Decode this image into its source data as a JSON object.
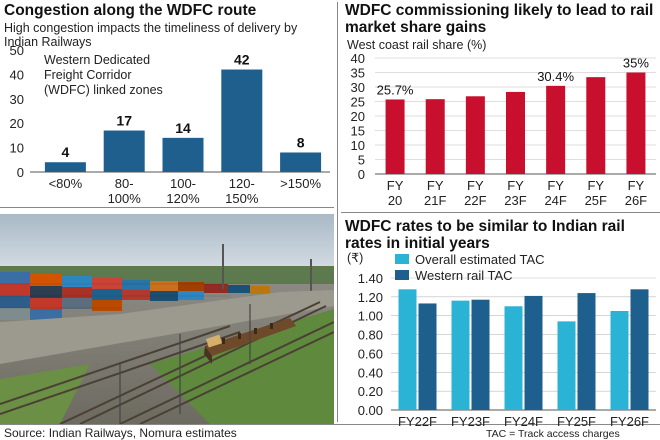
{
  "panels": {
    "congestion": {
      "title": "Congestion along the WDFC route",
      "subtitle": "High congestion impacts the timeliness of delivery by Indian Railways"
    },
    "share": {
      "title": "WDFC commissioning likely to lead to rail market share gains"
    },
    "rates": {
      "title": "WDFC rates to be similar to Indian rail rates in initial years"
    }
  },
  "footer": {
    "source": "Source: Indian Railways, Nomura estimates",
    "note": "TAC = Track access charges"
  },
  "photo": {
    "description": "Container depot with stacked shipping containers and a freight train on railway tracks"
  },
  "colors": {
    "dark_blue": "#1e5f8e",
    "red": "#c8102e",
    "light_blue": "#2bb3d6",
    "grid": "#bdbdbd"
  },
  "chart_data": [
    {
      "type": "bar",
      "title": "Congestion along the WDFC route",
      "annotation": "Western Dedicated Freight Corridor (WDFC) linked zones",
      "categories": [
        "<80%",
        "80-100%",
        "100-120%",
        "120-150%",
        ">150%"
      ],
      "category_lines": [
        [
          "<80%"
        ],
        [
          "80-",
          "100%"
        ],
        [
          "100-",
          "120%"
        ],
        [
          "120-",
          "150%"
        ],
        [
          ">150%"
        ]
      ],
      "values": [
        4,
        17,
        14,
        42,
        8
      ],
      "ylim": [
        0,
        50
      ],
      "yticks": [
        0,
        10,
        20,
        30,
        40,
        50
      ],
      "grid": false,
      "color": "#1e5f8e"
    },
    {
      "type": "bar",
      "title": "WDFC commissioning likely to lead to rail market share gains",
      "ylabel": "West coast rail share (%)",
      "categories": [
        "FY20",
        "FY21F",
        "FY22F",
        "FY23F",
        "FY24F",
        "FY25F",
        "FY26F"
      ],
      "category_lines": [
        [
          "FY",
          "20"
        ],
        [
          "FY",
          "21F"
        ],
        [
          "FY",
          "22F"
        ],
        [
          "FY",
          "23F"
        ],
        [
          "FY",
          "24F"
        ],
        [
          "FY",
          "25F"
        ],
        [
          "FY",
          "26F"
        ]
      ],
      "values": [
        25.7,
        25.8,
        26.8,
        28.3,
        30.4,
        33.4,
        35.0
      ],
      "data_labels": [
        "25.7%",
        "",
        "",
        "",
        "30.4%",
        "",
        "35%"
      ],
      "ylim": [
        0,
        40
      ],
      "yticks": [
        0,
        5,
        10,
        15,
        20,
        25,
        30,
        35,
        40
      ],
      "grid": true,
      "color": "#c8102e"
    },
    {
      "type": "bar",
      "title": "WDFC rates to be similar to Indian rail rates in initial years",
      "ylabel": "(₹)",
      "categories": [
        "FY22F",
        "FY23F",
        "FY24F",
        "FY25F",
        "FY26F"
      ],
      "series": [
        {
          "name": "Overall estimated TAC",
          "values": [
            1.28,
            1.16,
            1.1,
            0.94,
            1.05
          ],
          "color": "#2bb3d6"
        },
        {
          "name": "Western rail TAC",
          "values": [
            1.13,
            1.17,
            1.21,
            1.24,
            1.28
          ],
          "color": "#1e5f8e"
        }
      ],
      "ylim": [
        0,
        1.4
      ],
      "yticks": [
        "0.00",
        "0.20",
        "0.40",
        "0.60",
        "0.80",
        "1.00",
        "1.20",
        "1.40"
      ],
      "grid": true,
      "legend": "top-left"
    }
  ]
}
